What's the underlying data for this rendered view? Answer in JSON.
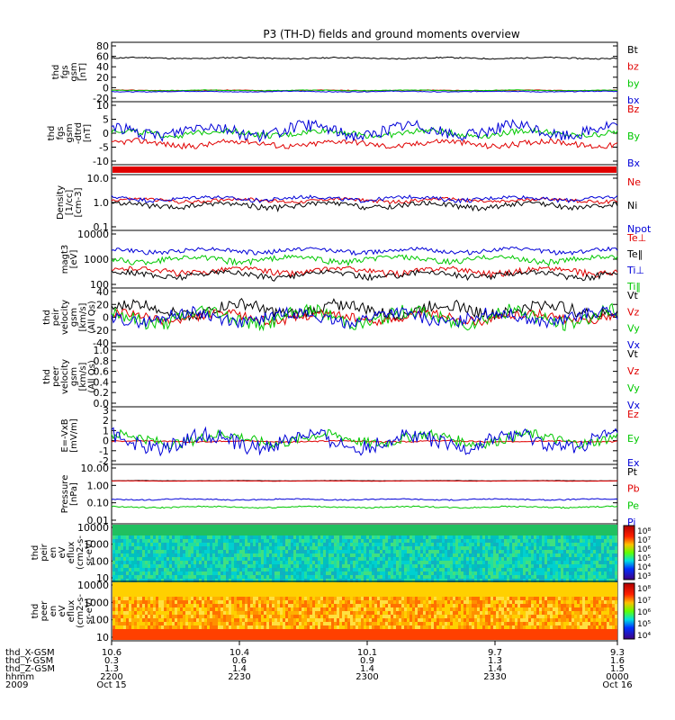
{
  "title": "P3 (TH-D) fields and ground moments overview",
  "colors": {
    "black": "#000000",
    "red": "#e00000",
    "green": "#00c800",
    "blue": "#0000d8"
  },
  "chart_data": [
    {
      "type": "line",
      "panel": "fgs_gsm",
      "ylabel": [
        "thd",
        "fgs",
        "gsm",
        "[nT]"
      ],
      "ticks": [
        "80",
        "60",
        "40",
        "20",
        "0",
        "-20"
      ],
      "ylim": [
        -20,
        85
      ],
      "series": [
        {
          "name": "Bt",
          "color": "black",
          "base": 57,
          "amp": 1
        },
        {
          "name": "bz",
          "color": "red",
          "base": 0,
          "amp": 0.5
        },
        {
          "name": "by",
          "color": "green",
          "base": 0,
          "amp": 0.5
        },
        {
          "name": "bx",
          "color": "blue",
          "base": -2,
          "amp": 0.6
        }
      ]
    },
    {
      "type": "line",
      "panel": "fgs_gsm_detrend",
      "ylabel": [
        "thd",
        "fgs",
        "gsm",
        "-dtrd",
        "[nT]"
      ],
      "ticks": [
        "10",
        "5",
        "0",
        "-5",
        "-10"
      ],
      "ylim": [
        -12,
        12
      ],
      "series": [
        {
          "name": "Bz",
          "color": "red",
          "base": -4,
          "amp": 1
        },
        {
          "name": "By",
          "color": "green",
          "base": 0,
          "amp": 1
        },
        {
          "name": "Bx",
          "color": "blue",
          "base": 1,
          "amp": 2
        }
      ]
    },
    {
      "type": "line",
      "panel": "flag",
      "ylabel": [],
      "ticks": [],
      "bar_color": "red"
    },
    {
      "type": "line",
      "panel": "density",
      "ylabel": [
        "Density",
        "[1/cc]",
        "[cm-3]"
      ],
      "ticks": [
        "10.0",
        "1.0",
        "0.1"
      ],
      "log": true,
      "ylim": [
        0.1,
        10
      ],
      "series": [
        {
          "name": "Ne",
          "color": "red",
          "base": 1.2,
          "amp": 0.15
        },
        {
          "name": "Ni",
          "color": "black",
          "base": 0.8,
          "amp": 0.15
        },
        {
          "name": "Npot",
          "color": "blue",
          "base": 1.4,
          "amp": 0.2
        }
      ]
    },
    {
      "type": "line",
      "panel": "temperature",
      "ylabel": [
        "magt3",
        "[eV]"
      ],
      "ticks": [
        "10000",
        "1000",
        "100"
      ],
      "log": true,
      "ylim": [
        100,
        10000
      ],
      "series": [
        {
          "name": "Te⊥",
          "color": "red",
          "base": 400,
          "amp": 80
        },
        {
          "name": "Te‖",
          "color": "black",
          "base": 300,
          "amp": 60
        },
        {
          "name": "Ti⊥",
          "color": "blue",
          "base": 2000,
          "amp": 300
        },
        {
          "name": "Ti‖",
          "color": "green",
          "base": 1000,
          "amp": 200
        }
      ]
    },
    {
      "type": "line",
      "panel": "peir_velocity",
      "ylabel": [
        "thd",
        "peir",
        "velocity",
        "gsm",
        "[km/s]",
        "(All Qs)"
      ],
      "ticks": [
        "40",
        "20",
        "0",
        "-20",
        "-40"
      ],
      "ylim": [
        -45,
        45
      ],
      "series": [
        {
          "name": "Vt",
          "color": "black",
          "base": 12,
          "amp": 8
        },
        {
          "name": "Vz",
          "color": "red",
          "base": 0,
          "amp": 6
        },
        {
          "name": "Vy",
          "color": "green",
          "base": 0,
          "amp": 10
        },
        {
          "name": "Vx",
          "color": "blue",
          "base": 0,
          "amp": 8
        }
      ]
    },
    {
      "type": "line",
      "panel": "peer_velocity",
      "ylabel": [
        "thd",
        "peer",
        "velocity",
        "gsm",
        "[km/s]",
        "(All Qs)"
      ],
      "ticks": [
        "1.0",
        "0.8",
        "0.6",
        "0.4",
        "0.2",
        "0.0"
      ],
      "ylim": [
        0,
        1
      ],
      "series": [
        {
          "name": "Vt",
          "color": "black"
        },
        {
          "name": "Vz",
          "color": "red"
        },
        {
          "name": "Vy",
          "color": "green"
        },
        {
          "name": "Vx",
          "color": "blue"
        }
      ]
    },
    {
      "type": "line",
      "panel": "efield",
      "ylabel": [
        "E=-VxB",
        "[mV/m]"
      ],
      "ticks": [
        "3",
        "2",
        "1",
        "0",
        "-1",
        "-2"
      ],
      "ylim": [
        -2,
        3
      ],
      "series": [
        {
          "name": "Ez",
          "color": "red",
          "base": 0,
          "amp": 0.05
        },
        {
          "name": "Ey",
          "color": "green",
          "base": 0.2,
          "amp": 0.4
        },
        {
          "name": "Ex",
          "color": "blue",
          "base": 0,
          "amp": 0.6
        }
      ]
    },
    {
      "type": "line",
      "panel": "pressure",
      "ylabel": [
        "Pressure",
        "[nPa]"
      ],
      "ticks": [
        "10.00",
        "1.00",
        "0.10",
        "0.01"
      ],
      "log": true,
      "ylim": [
        0.01,
        10
      ],
      "series": [
        {
          "name": "Pt",
          "color": "black",
          "base": 1.5,
          "amp": 0.02
        },
        {
          "name": "Pb",
          "color": "red",
          "base": 1.45,
          "amp": 0.02
        },
        {
          "name": "Pe",
          "color": "green",
          "base": 0.07,
          "amp": 0.005
        },
        {
          "name": "Pi",
          "color": "blue",
          "base": 0.17,
          "amp": 0.01
        }
      ]
    },
    {
      "type": "heatmap",
      "panel": "peir_eflux",
      "ylabel": [
        "thd",
        "peir",
        "en",
        "eV",
        "eflux",
        "(cm2-s-",
        "sr-eV)"
      ],
      "ticks": [
        "10000",
        "1000",
        "100",
        "10"
      ],
      "colorbar": [
        "10⁸",
        "10⁷",
        "10⁶",
        "10⁵",
        "10⁴",
        "10³"
      ]
    },
    {
      "type": "heatmap",
      "panel": "peer_eflux",
      "ylabel": [
        "thd",
        "peer",
        "en",
        "eV",
        "eflux",
        "(cm2-s-",
        "sr-eV)"
      ],
      "ticks": [
        "10000",
        "1000",
        "100",
        "10"
      ],
      "colorbar": [
        "10⁸",
        "10⁷",
        "10⁶",
        "10⁵",
        "10⁴"
      ]
    }
  ],
  "xaxis": {
    "rows": [
      {
        "label": "thd_X-GSM",
        "values": [
          "10.6",
          "10.4",
          "10.1",
          "9.7",
          "9.3"
        ]
      },
      {
        "label": "thd_Y-GSM",
        "values": [
          "0.3",
          "0.6",
          "0.9",
          "1.3",
          "1.6"
        ]
      },
      {
        "label": "thd_Z-GSM",
        "values": [
          "1.3",
          "1.4",
          "1.4",
          "1.4",
          "1.5"
        ]
      },
      {
        "label": "hhmm",
        "values": [
          "2200",
          "2230",
          "2300",
          "2330",
          "0000"
        ]
      },
      {
        "label": "2009",
        "values": [
          "Oct 15",
          "",
          "",
          "",
          "Oct 16"
        ]
      }
    ]
  }
}
